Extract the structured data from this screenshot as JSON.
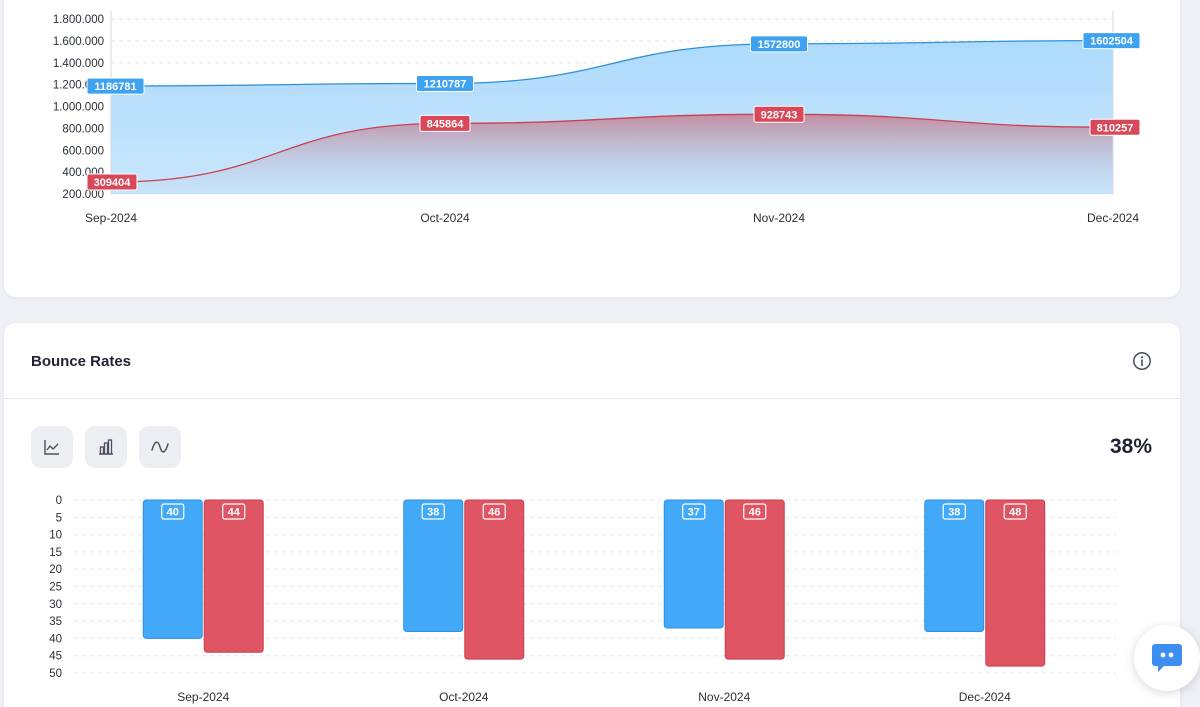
{
  "area_card": {
    "chart_data": {
      "type": "area",
      "x": [
        "Sep-2024",
        "Oct-2024",
        "Nov-2024",
        "Dec-2024"
      ],
      "yticks": [
        "200.000",
        "400.000",
        "600.000",
        "800.000",
        "1.000.000",
        "1.200.000",
        "1.400.000",
        "1.600.000",
        "1.800.000"
      ],
      "ylim": [
        200000,
        1800000
      ],
      "grid": true,
      "series": [
        {
          "values": [
            1186781,
            1210787,
            1572800,
            1602504
          ],
          "color": "#3ea2f0"
        },
        {
          "values": [
            309404,
            845864,
            928743,
            810257
          ],
          "color": "#d84858"
        }
      ]
    }
  },
  "bounce_card": {
    "title": "Bounce Rates",
    "info_icon": "info-icon",
    "toolbar": [
      "line-chart-icon",
      "bar-chart-icon",
      "smooth-curve-icon"
    ],
    "summary_value": "38%",
    "chart_data": {
      "type": "bar",
      "categories": [
        "Sep-2024",
        "Oct-2024",
        "Nov-2024",
        "Dec-2024"
      ],
      "yticks": [
        "0",
        "5",
        "10",
        "15",
        "20",
        "25",
        "30",
        "35",
        "40",
        "45",
        "50"
      ],
      "ylim": [
        0,
        50
      ],
      "y_inverted": true,
      "grid": true,
      "series": [
        {
          "values": [
            40,
            38,
            37,
            38
          ],
          "color": "#42a8f8"
        },
        {
          "values": [
            44,
            46,
            46,
            48
          ],
          "color": "#e05563"
        }
      ]
    }
  },
  "chat_button": {
    "icon": "chat-bubble-icon",
    "color": "#3c8ff0"
  }
}
